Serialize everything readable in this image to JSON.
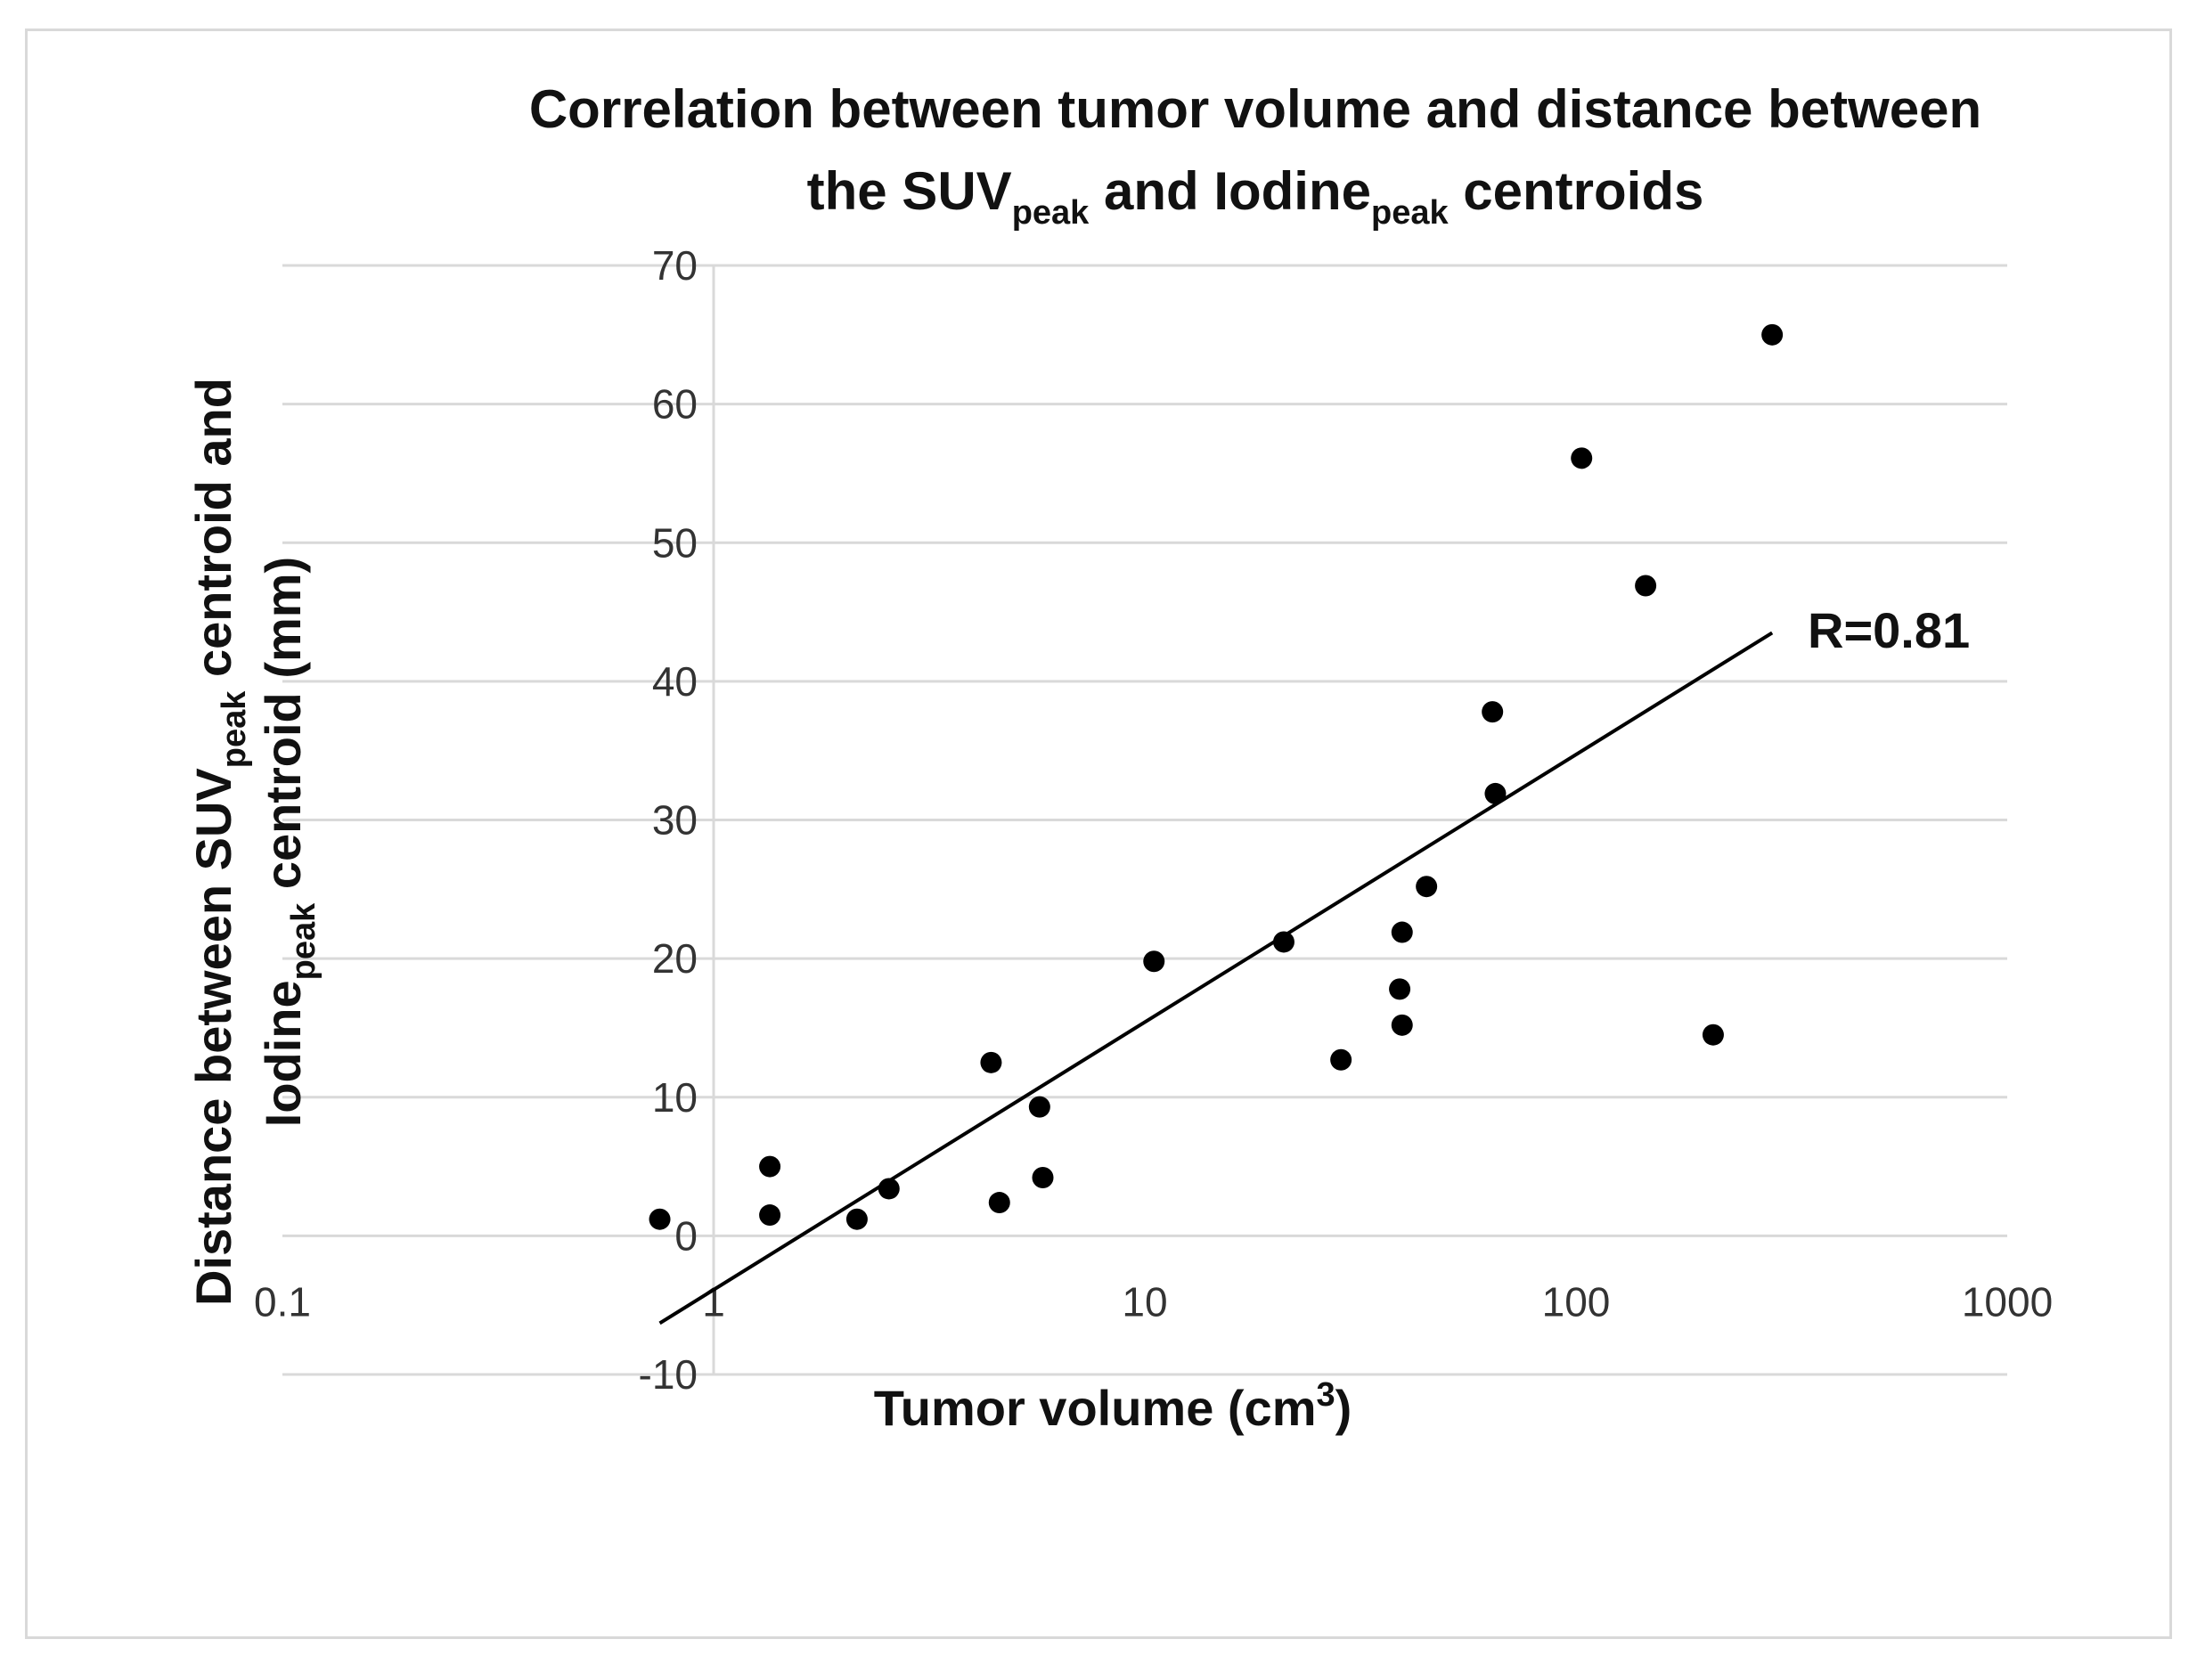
{
  "chart_data": {
    "type": "scatter",
    "title": {
      "line1": "Correlation between tumor volume and distance between",
      "line2_parts": [
        "the SUV",
        "peak",
        " and Iodine",
        "peak",
        " centroids"
      ]
    },
    "xlabel": {
      "text": "Tumor volume (cm",
      "sup": "3",
      "tail": ")"
    },
    "ylabel": {
      "line1_parts": [
        "Distance between SUV",
        "peak",
        " centroid and"
      ],
      "line2_parts": [
        "Iodine",
        "peak",
        " centroid (mm)"
      ]
    },
    "x_scale": "log",
    "xlim": [
      0.1,
      1000
    ],
    "ylim": [
      -10,
      70
    ],
    "x_ticks": [
      0.1,
      1,
      10,
      100,
      1000
    ],
    "x_tick_labels": [
      "0.1",
      "1",
      "10",
      "100",
      "1000"
    ],
    "y_ticks": [
      -10,
      0,
      10,
      20,
      30,
      40,
      50,
      60,
      70
    ],
    "y_tick_labels": [
      "-10",
      "0",
      "10",
      "20",
      "30",
      "40",
      "50",
      "60",
      "70"
    ],
    "y_axis_crosses_x_at": 1,
    "x_axis_crosses_y_at": 0,
    "grid": "horizontal",
    "points": [
      {
        "x": 0.75,
        "y": 1.2
      },
      {
        "x": 1.35,
        "y": 1.5
      },
      {
        "x": 1.35,
        "y": 5.0
      },
      {
        "x": 2.15,
        "y": 1.2
      },
      {
        "x": 2.55,
        "y": 3.4
      },
      {
        "x": 4.4,
        "y": 12.5
      },
      {
        "x": 4.6,
        "y": 2.4
      },
      {
        "x": 5.7,
        "y": 9.3
      },
      {
        "x": 5.8,
        "y": 4.2
      },
      {
        "x": 10.5,
        "y": 19.8
      },
      {
        "x": 21.0,
        "y": 21.2
      },
      {
        "x": 28.5,
        "y": 12.7
      },
      {
        "x": 39.0,
        "y": 17.8
      },
      {
        "x": 39.5,
        "y": 21.9
      },
      {
        "x": 39.5,
        "y": 15.2
      },
      {
        "x": 45.0,
        "y": 25.2
      },
      {
        "x": 64.0,
        "y": 37.8
      },
      {
        "x": 65.0,
        "y": 31.9
      },
      {
        "x": 103.0,
        "y": 56.1
      },
      {
        "x": 145.0,
        "y": 46.9
      },
      {
        "x": 208.0,
        "y": 14.5
      },
      {
        "x": 285.0,
        "y": 65.0
      }
    ],
    "trendline": {
      "type": "log",
      "from": {
        "x": 0.75,
        "y": -6.3
      },
      "to": {
        "x": 285.0,
        "y": 43.5
      },
      "label": "R=0.81"
    }
  }
}
